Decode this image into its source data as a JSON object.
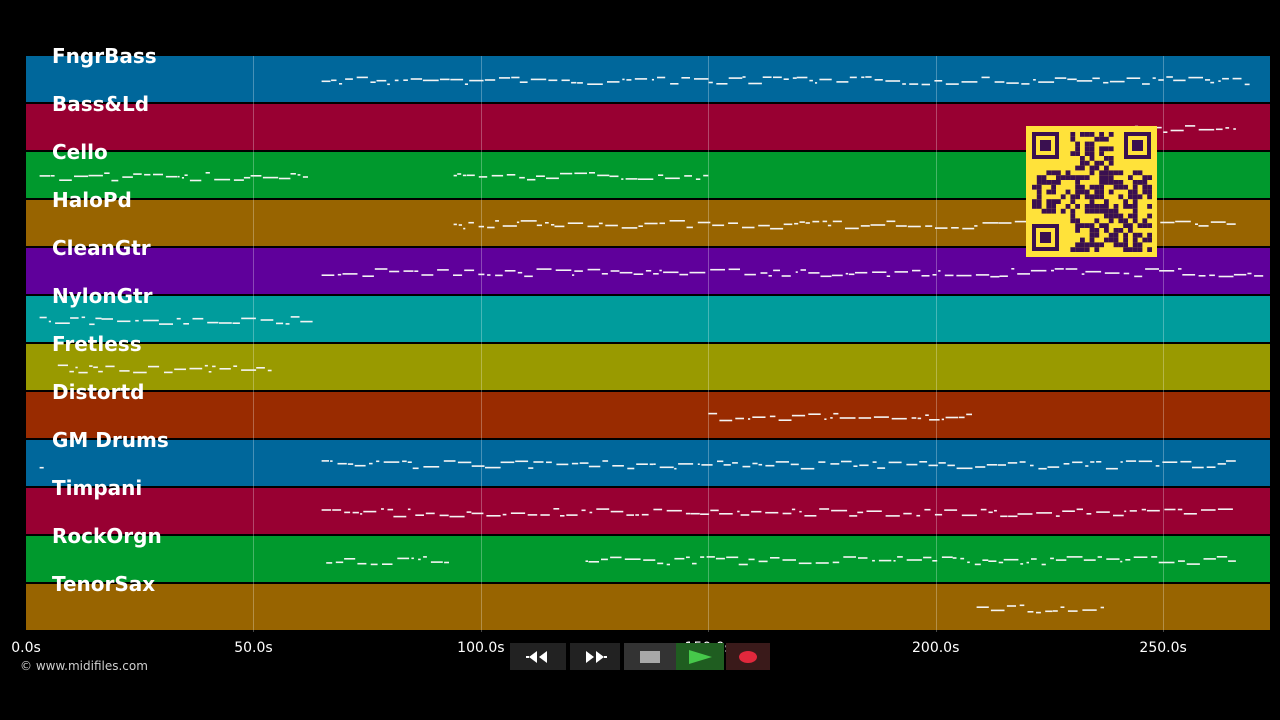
{
  "tracks": [
    {
      "label": "FngrBass",
      "color": "#00679b"
    },
    {
      "label": "Bass&Ld",
      "color": "#980032"
    },
    {
      "label": "Cello",
      "color": "#00992d"
    },
    {
      "label": "HaloPd",
      "color": "#986400"
    },
    {
      "label": "CleanGtr",
      "color": "#5f009b"
    },
    {
      "label": "NylonGtr",
      "color": "#009c9c"
    },
    {
      "label": "Fretless",
      "color": "#999a00"
    },
    {
      "label": "Distortd",
      "color": "#992b00"
    },
    {
      "label": "GM Drums",
      "color": "#00679b"
    },
    {
      "label": "Timpani",
      "color": "#980032"
    },
    {
      "label": "RockOrgn",
      "color": "#00992d"
    },
    {
      "label": "TenorSax",
      "color": "#986400"
    }
  ],
  "timeline": {
    "start_seconds": 0,
    "end_seconds": 273.5,
    "ticks": [
      {
        "value": 0,
        "label": "0.0s"
      },
      {
        "value": 50,
        "label": "50.0s"
      },
      {
        "value": 100,
        "label": "100.0s"
      },
      {
        "value": 150,
        "label": "150.0s"
      },
      {
        "value": 200,
        "label": "200.0s"
      },
      {
        "value": 250,
        "label": "250.0s"
      }
    ]
  },
  "note_ranges": [
    {
      "track": 0,
      "segments": [
        [
          65,
          269
        ]
      ]
    },
    {
      "track": 1,
      "segments": [
        [
          240,
          266
        ]
      ]
    },
    {
      "track": 2,
      "segments": [
        [
          3,
          62
        ],
        [
          94,
          150
        ]
      ]
    },
    {
      "track": 3,
      "segments": [
        [
          94,
          266
        ]
      ]
    },
    {
      "track": 4,
      "segments": [
        [
          65,
          272
        ]
      ]
    },
    {
      "track": 5,
      "segments": [
        [
          3,
          63
        ]
      ]
    },
    {
      "track": 6,
      "segments": [
        [
          7,
          54
        ]
      ]
    },
    {
      "track": 7,
      "segments": [
        [
          150,
          208
        ]
      ]
    },
    {
      "track": 8,
      "segments": [
        [
          3,
          4
        ],
        [
          65,
          266
        ]
      ]
    },
    {
      "track": 9,
      "segments": [
        [
          65,
          266
        ]
      ]
    },
    {
      "track": 10,
      "segments": [
        [
          66,
          93
        ],
        [
          123,
          266
        ]
      ]
    },
    {
      "track": 11,
      "segments": [
        [
          209,
          237
        ]
      ]
    }
  ],
  "copyright": "© www.midifiles.com",
  "transport": {
    "rewind_icon": "rewind-icon",
    "fast_forward_icon": "fast-forward-icon",
    "stop_icon": "stop-icon",
    "play_icon": "play-icon",
    "record_icon": "record-icon",
    "play_color": "#46c84a",
    "record_color": "#e0283c"
  },
  "qr_code": {
    "icon": "qr-code-icon",
    "color": "#ffe23a"
  }
}
